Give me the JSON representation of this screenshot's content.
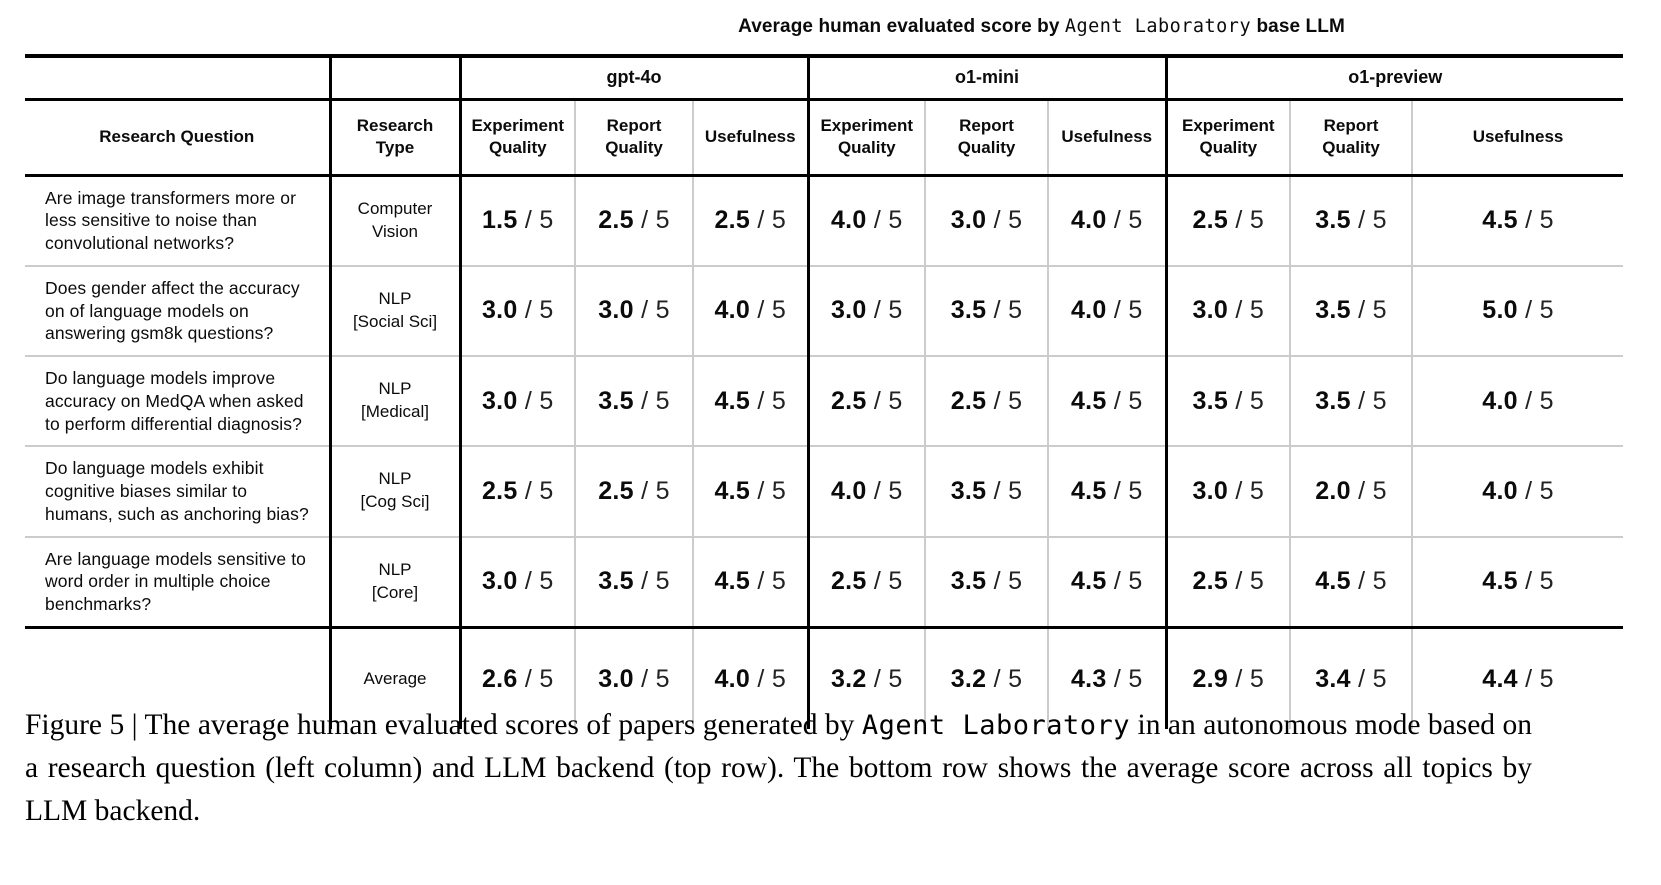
{
  "title": {
    "prefix": "Average human evaluated score by ",
    "mono": "Agent Laboratory",
    "suffix": " base LLM"
  },
  "table": {
    "corner_headers": [
      "Research Question",
      "Research Type"
    ],
    "groups": [
      {
        "label": "gpt-4o",
        "subheaders": [
          "Experiment Quality",
          "Report Quality",
          "Usefulness"
        ]
      },
      {
        "label": "o1-mini",
        "subheaders": [
          "Experiment Quality",
          "Report Quality",
          "Usefulness"
        ]
      },
      {
        "label": "o1-preview",
        "subheaders": [
          "Experiment Quality",
          "Report Quality",
          "Usefulness"
        ]
      }
    ],
    "score_denominator": " / 5",
    "rows": [
      {
        "question": "Are image transformers more or less sensitive to noise than convolutional networks?",
        "type": "Computer\nVision",
        "scores": [
          "1.5",
          "2.5",
          "2.5",
          "4.0",
          "3.0",
          "4.0",
          "2.5",
          "3.5",
          "4.5"
        ]
      },
      {
        "question": "Does gender affect the accuracy on of language models on answering gsm8k questions?",
        "type": "NLP\n[Social Sci]",
        "scores": [
          "3.0",
          "3.0",
          "4.0",
          "3.0",
          "3.5",
          "4.0",
          "3.0",
          "3.5",
          "5.0"
        ]
      },
      {
        "question": "Do language models improve accuracy on MedQA when asked to perform differential diagnosis?",
        "type": "NLP\n[Medical]",
        "scores": [
          "3.0",
          "3.5",
          "4.5",
          "2.5",
          "2.5",
          "4.5",
          "3.5",
          "3.5",
          "4.0"
        ]
      },
      {
        "question": "Do language models exhibit cognitive biases similar to humans, such as anchoring bias?",
        "type": "NLP\n[Cog Sci]",
        "scores": [
          "2.5",
          "2.5",
          "4.5",
          "4.0",
          "3.5",
          "4.5",
          "3.0",
          "2.0",
          "4.0"
        ]
      },
      {
        "question": "Are language models sensitive to word order in multiple choice benchmarks?",
        "type": "NLP\n[Core]",
        "scores": [
          "3.0",
          "3.5",
          "4.5",
          "2.5",
          "3.5",
          "4.5",
          "2.5",
          "4.5",
          "4.5"
        ]
      }
    ],
    "average_row": {
      "question": "",
      "type": "Average",
      "scores": [
        "2.6",
        "3.0",
        "4.0",
        "3.2",
        "3.2",
        "4.3",
        "2.9",
        "3.4",
        "4.4"
      ]
    }
  },
  "caption": {
    "prefix": "Figure 5 | The average human evaluated scores of papers generated by ",
    "mono": "Agent Laboratory",
    "suffix": " in an autonomous mode based on a research question (left column) and LLM backend (top row). The bottom row shows the average score across all topics by LLM backend."
  }
}
